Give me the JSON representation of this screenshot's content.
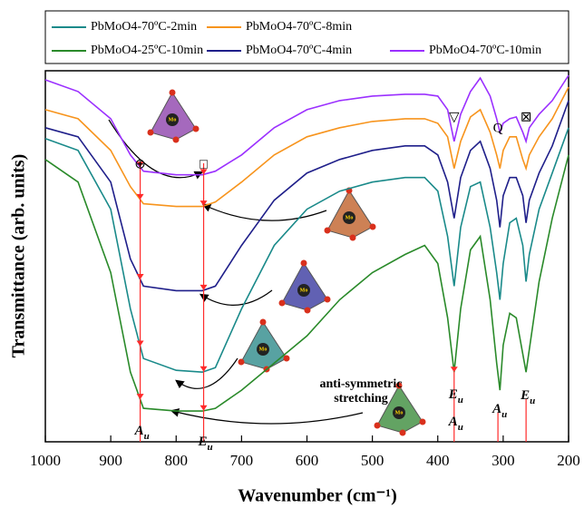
{
  "chart_data": {
    "type": "line",
    "xlabel": "Wavenumber (cm⁻¹)",
    "ylabel": "Transmittance (arb. units)",
    "xlim": [
      1000,
      200
    ],
    "ylim": [
      0,
      410
    ],
    "xticks": [
      1000,
      900,
      800,
      700,
      600,
      500,
      400,
      300,
      200
    ],
    "x": [
      1000,
      950,
      900,
      870,
      850,
      800,
      760,
      740,
      700,
      650,
      600,
      550,
      500,
      450,
      420,
      400,
      385,
      375,
      365,
      350,
      335,
      320,
      310,
      305,
      300,
      290,
      280,
      270,
      265,
      260,
      245,
      225,
      200
    ],
    "series": [
      {
        "name": "PbMoO4-70ºC-2min",
        "color": "#1a8a8a",
        "values": [
          335,
          322,
          257,
          147,
          92,
          79,
          77,
          82,
          147,
          217,
          257,
          277,
          287,
          292,
          292,
          277,
          227,
          172,
          237,
          282,
          287,
          237,
          187,
          157,
          197,
          242,
          247,
          217,
          177,
          207,
          257,
          297,
          347
        ]
      },
      {
        "name": "PbMoO4-70ºC-8min",
        "color": "#f7941d",
        "values": [
          367,
          357,
          322,
          282,
          263,
          260,
          260,
          265,
          287,
          317,
          337,
          347,
          354,
          357,
          357,
          352,
          337,
          302,
          332,
          359,
          367,
          342,
          317,
          302,
          322,
          337,
          337,
          312,
          302,
          317,
          337,
          357,
          392
        ]
      },
      {
        "name": "PbMoO4-25ºC-10min",
        "color": "#2a8a2a",
        "values": [
          312,
          287,
          187,
          77,
          37,
          34,
          34,
          37,
          57,
          87,
          117,
          157,
          187,
          207,
          217,
          197,
          137,
          77,
          147,
          212,
          227,
          157,
          87,
          57,
          107,
          142,
          137,
          97,
          77,
          102,
          177,
          247,
          317
        ]
      },
      {
        "name": "PbMoO4-70ºC-4min",
        "color": "#1f1f8a",
        "values": [
          347,
          337,
          287,
          202,
          172,
          167,
          167,
          172,
          217,
          267,
          297,
          312,
          322,
          327,
          327,
          317,
          287,
          247,
          292,
          322,
          332,
          302,
          267,
          237,
          272,
          292,
          292,
          272,
          242,
          267,
          297,
          327,
          377
        ]
      },
      {
        "name": "PbMoO4-70ºC-10min",
        "color": "#9b30ff",
        "values": [
          400,
          387,
          357,
          317,
          299,
          295,
          295,
          299,
          317,
          347,
          367,
          377,
          382,
          384,
          384,
          382,
          367,
          332,
          362,
          387,
          402,
          382,
          357,
          342,
          352,
          357,
          359,
          342,
          332,
          347,
          362,
          377,
          405
        ]
      }
    ],
    "annotations": {
      "lines": [
        855,
        758,
        375,
        308,
        265
      ],
      "labels": [
        {
          "x": 855,
          "main": "A",
          "sub": "u"
        },
        {
          "x": 758,
          "main": "E",
          "sub": "u"
        },
        {
          "x": 375,
          "main": "E",
          "sub": "u"
        },
        {
          "x": 375,
          "main": "A",
          "sub": "u"
        },
        {
          "x": 308,
          "main": "A",
          "sub": "u"
        },
        {
          "x": 265,
          "main": "E",
          "sub": "u"
        }
      ],
      "symbols": [
        {
          "x": 855,
          "text": "⊕"
        },
        {
          "x": 758,
          "text": "□"
        },
        {
          "x": 375,
          "text": "▽"
        },
        {
          "x": 308,
          "text": "Q"
        },
        {
          "x": 265,
          "text": "⊠"
        }
      ],
      "note": [
        "anti-symmetric",
        "stretching"
      ],
      "icon_label": "Mo"
    }
  }
}
